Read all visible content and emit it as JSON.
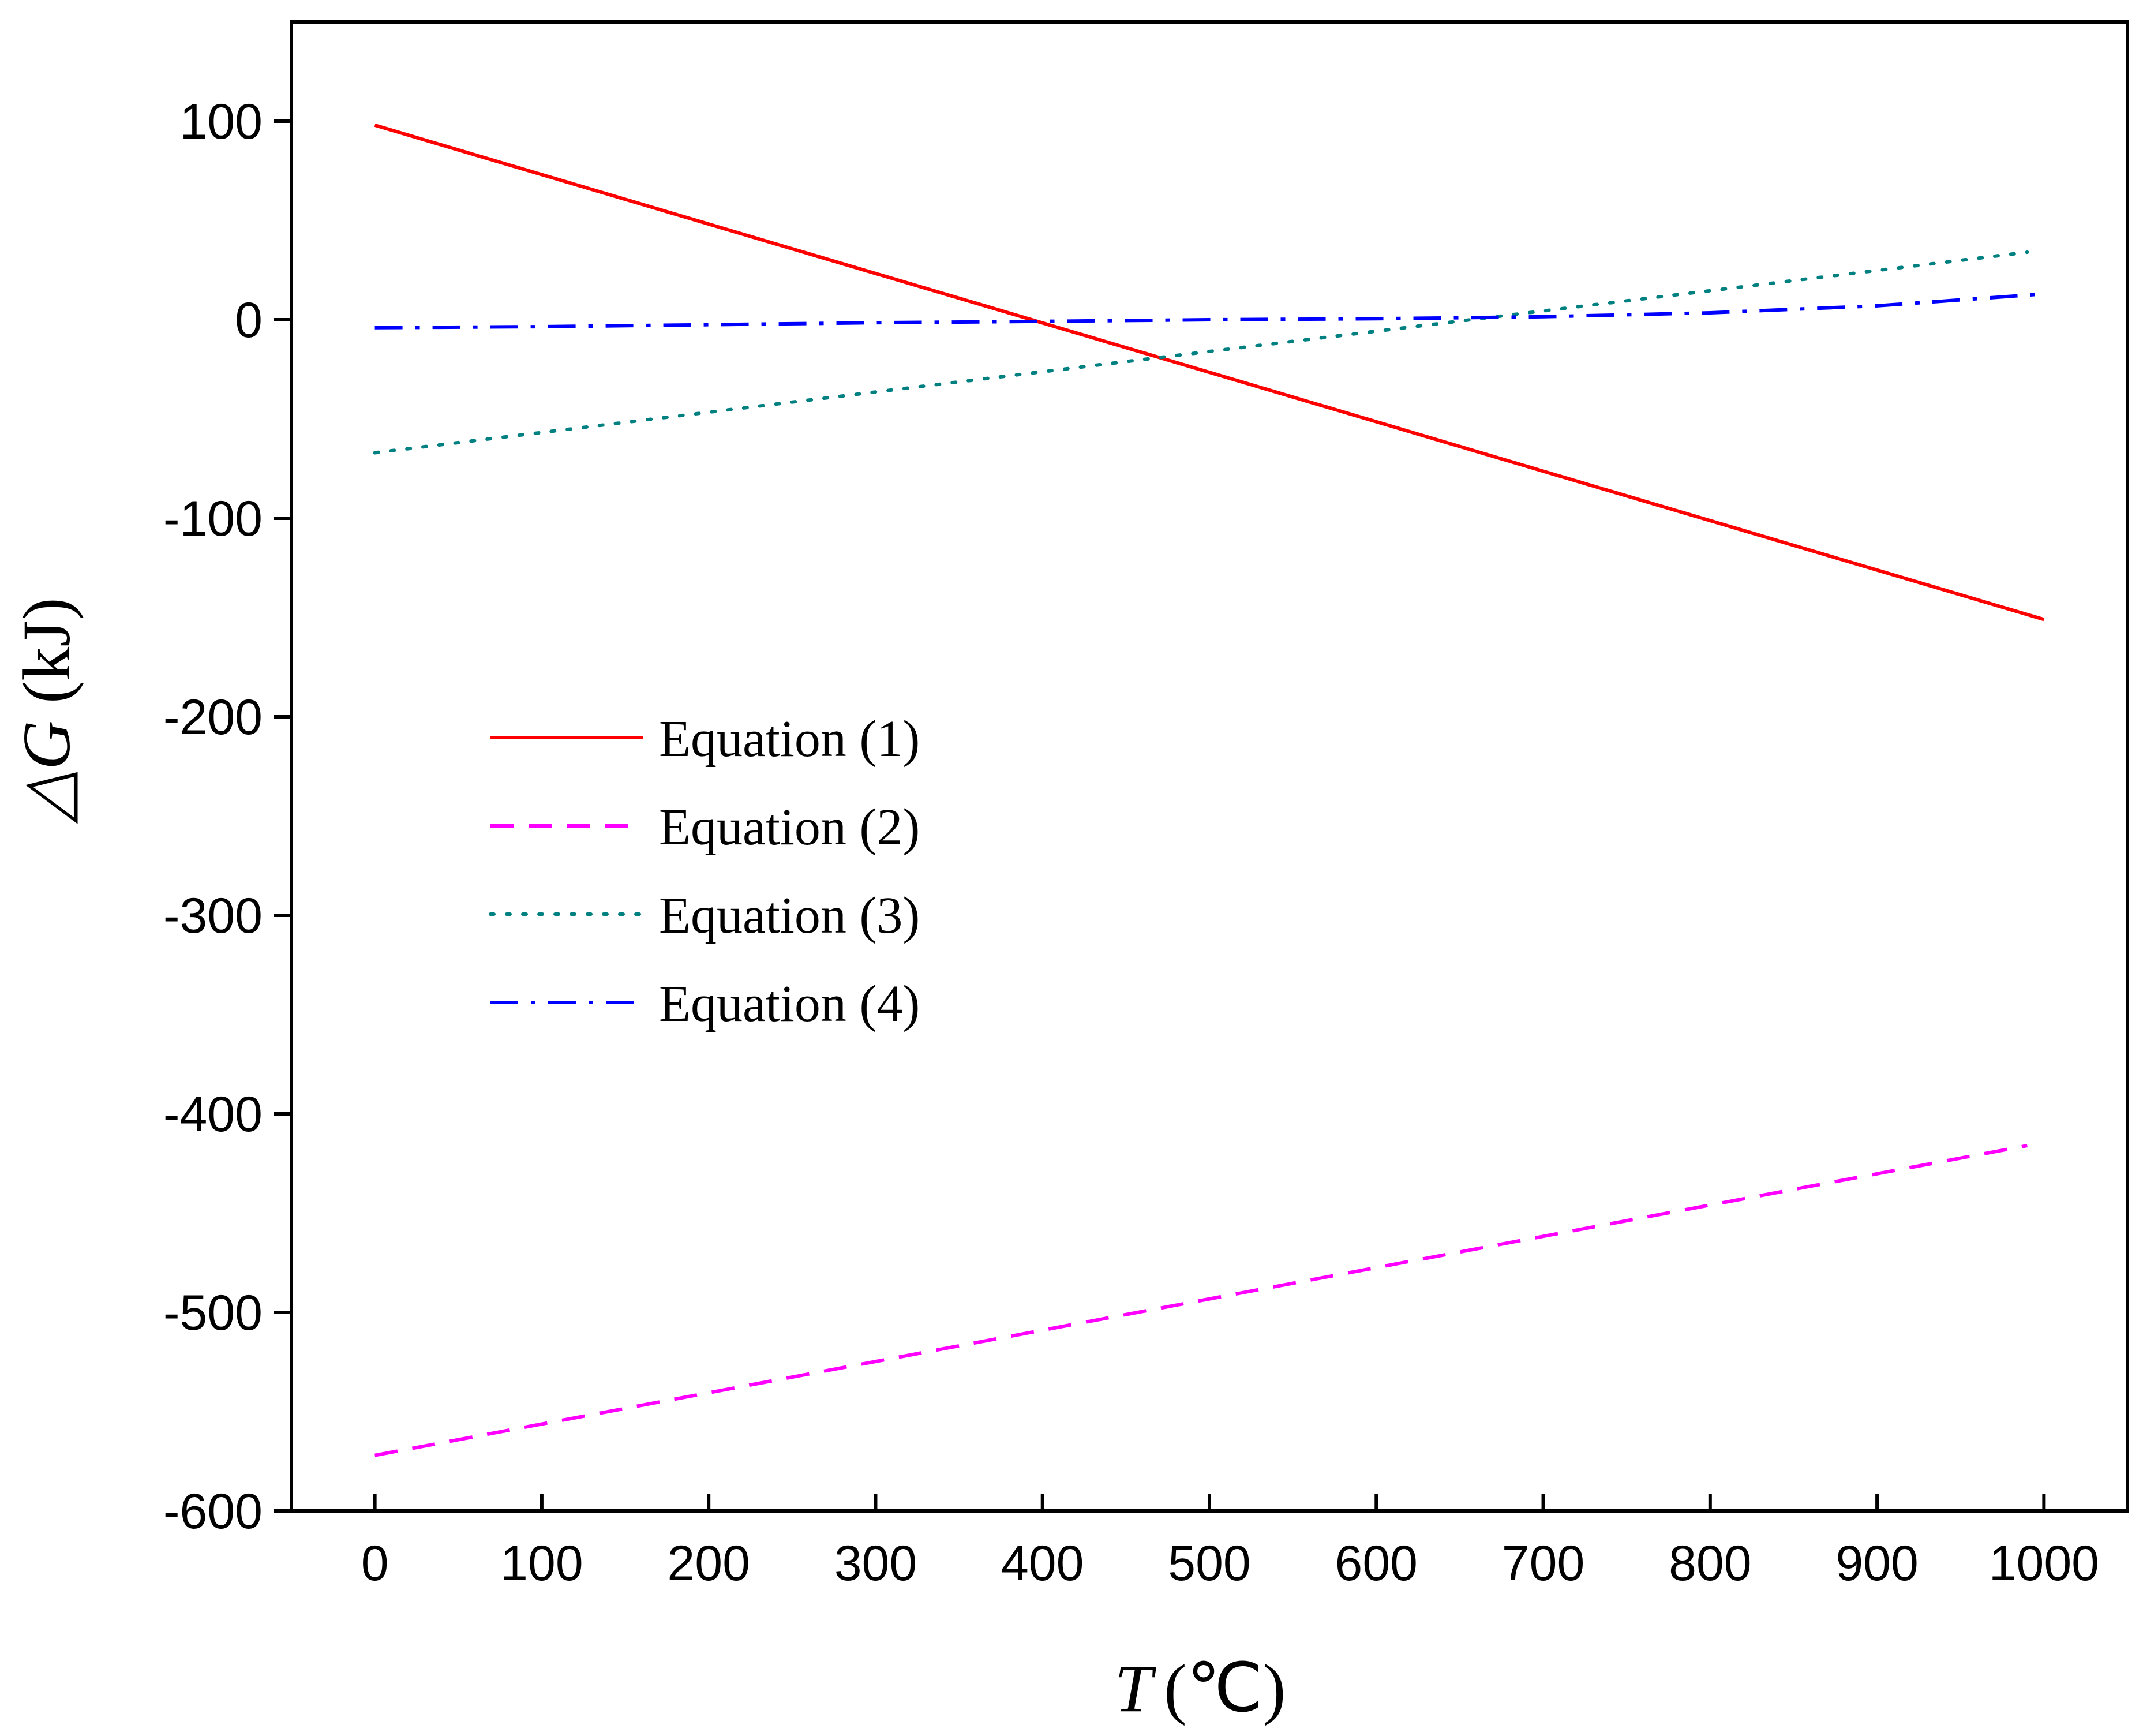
{
  "chart_data": {
    "type": "line",
    "title": "",
    "xlabel": {
      "var": "T",
      "unit": "(℃)"
    },
    "ylabel": {
      "var": "△G",
      "unit": " (kJ)"
    },
    "xlim": [
      -50,
      1050
    ],
    "ylim": [
      -600,
      150
    ],
    "xticks": [
      0,
      100,
      200,
      300,
      400,
      500,
      600,
      700,
      800,
      900,
      1000
    ],
    "yticks": [
      100,
      0,
      -100,
      -200,
      -300,
      -400,
      -500,
      -600
    ],
    "legend_position": "center-left",
    "series": [
      {
        "name": "Equation (1)",
        "color": "#ff0000",
        "dash": "solid",
        "x": [
          0,
          1000
        ],
        "y": [
          98,
          -151
        ]
      },
      {
        "name": "Equation (2)",
        "color": "#ff00ff",
        "dash": "dash",
        "x": [
          0,
          990
        ],
        "y": [
          -572,
          -416
        ]
      },
      {
        "name": "Equation (3)",
        "color": "#008080",
        "dash": "dot",
        "x": [
          0,
          990
        ],
        "y": [
          -67,
          34
        ]
      },
      {
        "name": "Equation (4)",
        "color": "#0000ff",
        "dash": "dashdot",
        "x": [
          0,
          100,
          200,
          300,
          400,
          500,
          600,
          700,
          800,
          900,
          1000
        ],
        "y": [
          -4,
          -3.5,
          -2.5,
          -1.5,
          -0.8,
          0,
          0.5,
          1.5,
          3.5,
          7,
          13
        ]
      }
    ]
  }
}
